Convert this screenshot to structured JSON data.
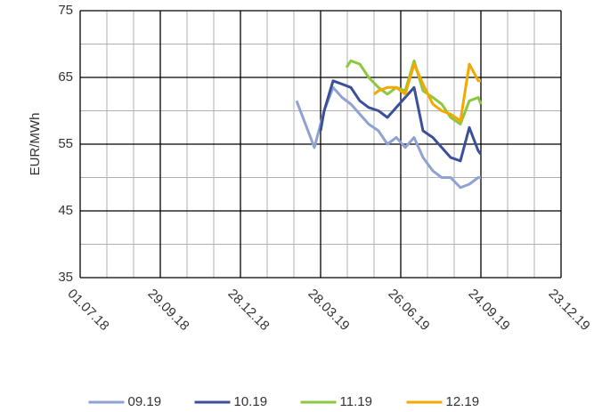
{
  "chart_data": {
    "type": "line",
    "ylabel": "EUR/MWh",
    "xlim": [
      "01.07.18",
      "23.12.19"
    ],
    "xticks": [
      "01.07.18",
      "29.09.18",
      "28.12.18",
      "28.03.19",
      "26.06.19",
      "24.09.19",
      "23.12.19"
    ],
    "ylim": [
      35,
      75
    ],
    "yticks": [
      35,
      45,
      55,
      65,
      75
    ],
    "grid": true,
    "legend": "bottom",
    "series": [
      {
        "name": "09.19",
        "color": "#8fa2d1",
        "x": [
          "01.03.19",
          "11.03.19",
          "21.03.19",
          "01.04.19",
          "11.04.19",
          "21.04.19",
          "01.05.19",
          "11.05.19",
          "21.05.19",
          "01.06.19",
          "11.06.19",
          "21.06.19",
          "01.07.19",
          "11.07.19",
          "21.07.19",
          "01.08.19",
          "11.08.19",
          "21.08.19",
          "01.09.19",
          "11.09.19",
          "21.09.19",
          "24.09.19"
        ],
        "values": [
          61.5,
          58,
          54.5,
          60,
          63.5,
          62,
          61,
          59.5,
          58,
          57,
          55,
          56,
          54.5,
          56,
          53,
          51,
          50,
          50,
          48.5,
          49,
          50,
          50
        ]
      },
      {
        "name": "10.19",
        "color": "#3c4f9a",
        "x": [
          "28.03.19",
          "01.04.19",
          "11.04.19",
          "21.04.19",
          "01.05.19",
          "11.05.19",
          "21.05.19",
          "01.06.19",
          "11.06.19",
          "21.06.19",
          "01.07.19",
          "11.07.19",
          "21.07.19",
          "01.08.19",
          "11.08.19",
          "21.08.19",
          "01.09.19",
          "11.09.19",
          "21.09.19",
          "24.09.19"
        ],
        "values": [
          57,
          60,
          64.5,
          64,
          63.5,
          61.5,
          60.5,
          60,
          59,
          60.5,
          62,
          63.5,
          57,
          56,
          54.5,
          53,
          52.5,
          57.5,
          54,
          53.5
        ]
      },
      {
        "name": "11.19",
        "color": "#8dc63f",
        "x": [
          "26.04.19",
          "01.05.19",
          "11.05.19",
          "21.05.19",
          "01.06.19",
          "11.06.19",
          "21.06.19",
          "01.07.19",
          "11.07.19",
          "21.07.19",
          "01.08.19",
          "11.08.19",
          "21.08.19",
          "01.09.19",
          "11.09.19",
          "21.09.19",
          "24.09.19"
        ],
        "values": [
          66.5,
          67.5,
          67,
          65,
          63.5,
          62.5,
          63.5,
          63,
          67.5,
          63,
          62,
          61,
          59,
          58,
          61.5,
          62,
          61
        ]
      },
      {
        "name": "12.19",
        "color": "#f5a800",
        "x": [
          "27.05.19",
          "01.06.19",
          "11.06.19",
          "21.06.19",
          "01.07.19",
          "11.07.19",
          "21.07.19",
          "01.08.19",
          "11.08.19",
          "21.08.19",
          "01.09.19",
          "11.09.19",
          "21.09.19",
          "24.09.19"
        ],
        "values": [
          62.5,
          63,
          63.5,
          63.5,
          62.5,
          67,
          64,
          61,
          60,
          59.5,
          58.5,
          67,
          64.5,
          64.5
        ]
      }
    ]
  }
}
